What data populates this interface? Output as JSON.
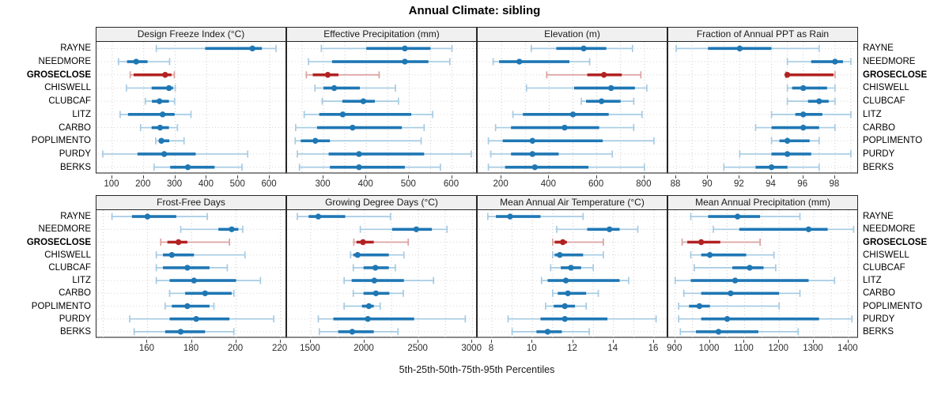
{
  "title": "Annual Climate: sibling",
  "caption": "5th-25th-50th-75th-95th Percentiles",
  "colors": {
    "series_main": "#1f77b4",
    "series_light": "#a6cbe3",
    "highlight_main": "#b22222",
    "highlight_light": "#dda1a1",
    "grid": "#cccccc",
    "header_bg": "#f0f0f0",
    "panel_border": "#262626",
    "axis_line": "#8a8a8a",
    "tick_text": "#2b2b2b"
  },
  "chart_data": {
    "type": "dot-whisker",
    "percentiles": [
      5,
      25,
      50,
      75,
      95
    ],
    "sites": [
      "RAYNE",
      "NEEDMORE",
      "GROSECLOSE",
      "CHISWELL",
      "CLUBCAF",
      "LITZ",
      "CARBO",
      "POPLIMENTO",
      "PURDY",
      "BERKS"
    ],
    "highlight_site": "GROSECLOSE",
    "legend_note": "5th-25th-50th-75th-95th Percentiles",
    "panels": [
      {
        "title": "Design Freeze Index (°C)",
        "xlim": [
          50,
          655
        ],
        "ticks": [
          100,
          200,
          300,
          400,
          500,
          600
        ],
        "grid": [
          100,
          200,
          300,
          400,
          500,
          600
        ],
        "values": {
          "RAYNE": [
            240,
            395,
            545,
            575,
            620
          ],
          "NEEDMORE": [
            120,
            147,
            176,
            212,
            282
          ],
          "GROSECLOSE": [
            157,
            168,
            268,
            288,
            297
          ],
          "CHISWELL": [
            145,
            225,
            280,
            293,
            300
          ],
          "CLUBCAF": [
            205,
            226,
            250,
            280,
            298
          ],
          "LITZ": [
            125,
            150,
            260,
            298,
            350
          ],
          "CARBO": [
            190,
            225,
            252,
            280,
            307
          ],
          "POPLIMENTO": [
            238,
            248,
            256,
            281,
            328
          ],
          "PURDY": [
            70,
            180,
            265,
            365,
            530
          ],
          "BERKS": [
            233,
            284,
            340,
            425,
            512
          ]
        }
      },
      {
        "title": "Effective Precipitation (mm)",
        "xlim": [
          215,
          660
        ],
        "ticks": [
          300,
          400,
          500,
          600
        ],
        "grid": [
          250,
          300,
          350,
          400,
          450,
          500,
          550,
          600,
          650
        ],
        "values": {
          "RAYNE": [
            295,
            400,
            490,
            550,
            600
          ],
          "NEEDMORE": [
            265,
            320,
            490,
            545,
            595
          ],
          "GROSECLOSE": [
            260,
            275,
            310,
            335,
            430
          ],
          "CHISWELL": [
            280,
            300,
            325,
            385,
            468
          ],
          "CLUBCAF": [
            297,
            344,
            393,
            420,
            475
          ],
          "LITZ": [
            255,
            290,
            345,
            505,
            555
          ],
          "CARBO": [
            235,
            285,
            368,
            483,
            535
          ],
          "POPLIMENTO": [
            234,
            247,
            281,
            315,
            528
          ],
          "PURDY": [
            239,
            312,
            383,
            535,
            645
          ],
          "BERKS": [
            244,
            315,
            383,
            490,
            573
          ]
        }
      },
      {
        "title": "Elevation (m)",
        "xlim": [
          100,
          900
        ],
        "ticks": [
          200,
          400,
          600,
          800
        ],
        "grid": [
          200,
          300,
          400,
          500,
          600,
          700,
          800
        ],
        "values": {
          "RAYNE": [
            325,
            430,
            545,
            640,
            750
          ],
          "NEEDMORE": [
            165,
            190,
            275,
            485,
            570
          ],
          "GROSECLOSE": [
            390,
            560,
            630,
            705,
            785
          ],
          "CHISWELL": [
            305,
            505,
            660,
            760,
            810
          ],
          "CLUBCAF": [
            535,
            555,
            620,
            700,
            755
          ],
          "LITZ": [
            248,
            290,
            500,
            650,
            790
          ],
          "CARBO": [
            175,
            240,
            465,
            610,
            755
          ],
          "POPLIMENTO": [
            145,
            205,
            330,
            625,
            840
          ],
          "PURDY": [
            155,
            240,
            330,
            440,
            665
          ],
          "BERKS": [
            145,
            215,
            340,
            565,
            800
          ]
        }
      },
      {
        "title": "Fraction of Annual PPT as Rain",
        "xlim": [
          87.5,
          99.5
        ],
        "ticks": [
          88,
          90,
          92,
          94,
          96,
          98
        ],
        "grid": [
          88,
          89,
          90,
          91,
          92,
          93,
          94,
          95,
          96,
          97,
          98,
          99
        ],
        "values": {
          "RAYNE": [
            88,
            90,
            92,
            94,
            97
          ],
          "NEEDMORE": [
            95,
            96.5,
            98,
            98.5,
            99
          ],
          "GROSECLOSE": [
            94.9,
            95,
            95,
            97.9,
            98
          ],
          "CHISWELL": [
            95,
            95.3,
            96,
            97.5,
            98
          ],
          "CLUBCAF": [
            95,
            96.3,
            97,
            97.6,
            98
          ],
          "LITZ": [
            94,
            95.5,
            96,
            97.2,
            99
          ],
          "CARBO": [
            93,
            94,
            96,
            97,
            98
          ],
          "POPLIMENTO": [
            94,
            94.5,
            95,
            96.4,
            97
          ],
          "PURDY": [
            92,
            94,
            95,
            96.5,
            99
          ],
          "BERKS": [
            91,
            93,
            94,
            95,
            97
          ]
        }
      },
      {
        "title": "Frost-Free Days",
        "xlim": [
          137,
          223
        ],
        "ticks": [
          160,
          180,
          200,
          220
        ],
        "grid": [
          140,
          160,
          180,
          200,
          220
        ],
        "values": {
          "RAYNE": [
            144,
            153,
            160,
            173,
            187
          ],
          "NEEDMORE": [
            175,
            192,
            198,
            201,
            203
          ],
          "GROSECLOSE": [
            166,
            169,
            174,
            178,
            197
          ],
          "CHISWELL": [
            164,
            167,
            171,
            181,
            204
          ],
          "CLUBCAF": [
            164,
            167,
            178,
            188,
            196
          ],
          "LITZ": [
            164,
            170,
            181,
            200,
            211
          ],
          "CARBO": [
            170,
            177,
            186,
            198,
            199
          ],
          "POPLIMENTO": [
            168,
            171,
            178,
            188,
            190
          ],
          "PURDY": [
            152,
            170,
            182,
            197,
            217
          ],
          "BERKS": [
            154,
            168,
            175,
            186,
            199
          ]
        }
      },
      {
        "title": "Growing Degree Days (°C)",
        "xlim": [
          1280,
          3050
        ],
        "ticks": [
          1500,
          2000,
          2500,
          3000
        ],
        "grid": [
          1500,
          1750,
          2000,
          2250,
          2500,
          2750,
          3000
        ],
        "values": {
          "RAYNE": [
            1375,
            1480,
            1570,
            1820,
            2240
          ],
          "NEEDMORE": [
            1960,
            2255,
            2480,
            2625,
            2765
          ],
          "GROSECLOSE": [
            1900,
            1925,
            1985,
            2085,
            2405
          ],
          "CHISWELL": [
            1870,
            1895,
            1935,
            2225,
            2365
          ],
          "CLUBCAF": [
            1895,
            1990,
            2100,
            2225,
            2285
          ],
          "LITZ": [
            1810,
            1880,
            2090,
            2365,
            2640
          ],
          "CARBO": [
            1895,
            1990,
            2105,
            2230,
            2360
          ],
          "POPLIMENTO": [
            1810,
            1975,
            2040,
            2085,
            2145
          ],
          "PURDY": [
            1570,
            1710,
            2030,
            2460,
            2935
          ],
          "BERKS": [
            1580,
            1755,
            1885,
            2085,
            2310
          ]
        }
      },
      {
        "title": "Mean Annual Air Temperature (°C)",
        "xlim": [
          7.3,
          16.7
        ],
        "ticks": [
          8,
          10,
          12,
          14,
          16
        ],
        "grid": [
          8,
          9,
          10,
          11,
          12,
          13,
          14,
          15,
          16
        ],
        "values": {
          "RAYNE": [
            7.8,
            8.2,
            8.9,
            10.4,
            12.5
          ],
          "NEEDMORE": [
            11.2,
            12.7,
            13.8,
            14.3,
            15.2
          ],
          "GROSECLOSE": [
            11.0,
            11.1,
            11.5,
            11.7,
            13.5
          ],
          "CHISWELL": [
            11.0,
            11.1,
            11.35,
            12.5,
            13.5
          ],
          "CLUBCAF": [
            10.9,
            11.4,
            11.9,
            12.4,
            13.0
          ],
          "LITZ": [
            10.45,
            10.75,
            11.65,
            14.3,
            14.75
          ],
          "CARBO": [
            11.0,
            11.25,
            11.75,
            12.65,
            13.25
          ],
          "POPLIMENTO": [
            10.65,
            11.05,
            11.6,
            12.1,
            12.65
          ],
          "PURDY": [
            8.8,
            10.4,
            11.6,
            13.7,
            16.1
          ],
          "BERKS": [
            9.0,
            10.2,
            10.75,
            11.45,
            12.8
          ]
        }
      },
      {
        "title": "Mean Annual Precipitation (mm)",
        "xlim": [
          880,
          1430
        ],
        "ticks": [
          900,
          1000,
          1100,
          1200,
          1300,
          1400
        ],
        "grid": [
          900,
          950,
          1000,
          1050,
          1100,
          1150,
          1200,
          1250,
          1300,
          1350,
          1400
        ],
        "values": {
          "RAYNE": [
            945,
            995,
            1080,
            1145,
            1260
          ],
          "NEEDMORE": [
            1010,
            1085,
            1285,
            1340,
            1415
          ],
          "GROSECLOSE": [
            920,
            935,
            975,
            1030,
            1145
          ],
          "CHISWELL": [
            945,
            975,
            1000,
            1105,
            1185
          ],
          "CLUBCAF": [
            955,
            1065,
            1115,
            1155,
            1190
          ],
          "LITZ": [
            900,
            945,
            1073,
            1285,
            1360
          ],
          "CARBO": [
            925,
            975,
            1060,
            1200,
            1260
          ],
          "POPLIMENTO": [
            910,
            940,
            970,
            1000,
            1200
          ],
          "PURDY": [
            910,
            975,
            1050,
            1315,
            1410
          ],
          "BERKS": [
            915,
            960,
            1025,
            1140,
            1255
          ]
        }
      }
    ]
  }
}
